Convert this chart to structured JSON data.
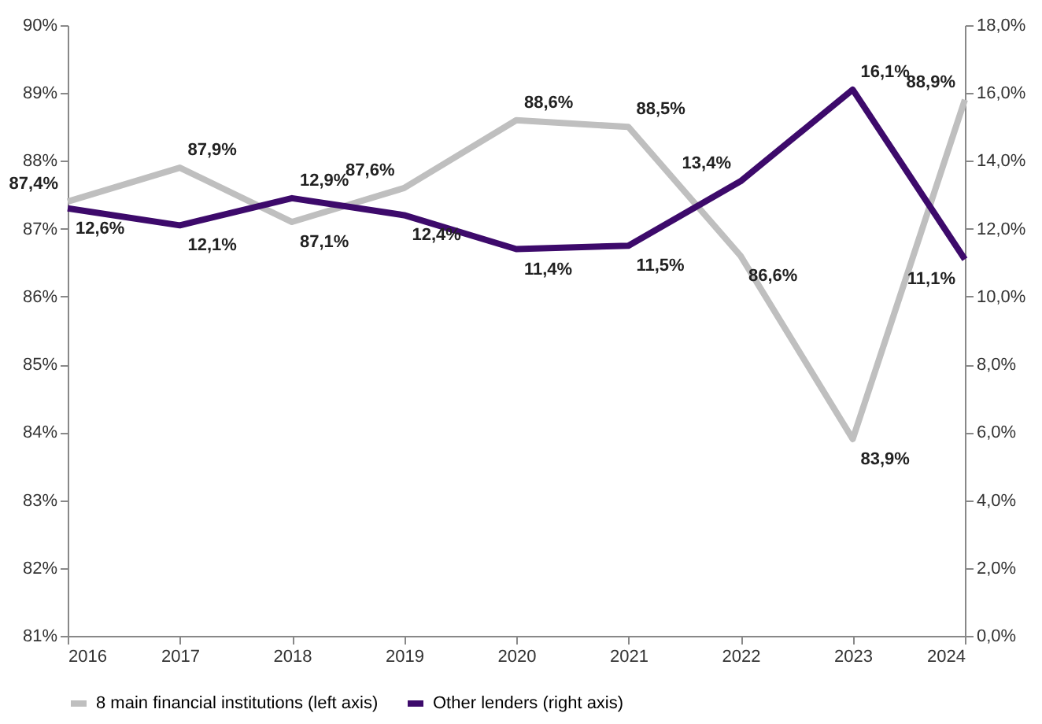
{
  "chart_data": {
    "type": "line",
    "x": [
      2016,
      2017,
      2018,
      2019,
      2020,
      2021,
      2022,
      2023,
      2024
    ],
    "xlim": [
      2016,
      2024
    ],
    "xticks": [
      2016,
      2017,
      2018,
      2019,
      2020,
      2021,
      2022,
      2023,
      2024
    ],
    "ylim": [
      81,
      90
    ],
    "yticks": [
      {
        "value": 81,
        "label": "81%"
      },
      {
        "value": 82,
        "label": "82%"
      },
      {
        "value": 83,
        "label": "83%"
      },
      {
        "value": 84,
        "label": "84%"
      },
      {
        "value": 85,
        "label": "85%"
      },
      {
        "value": 86,
        "label": "86%"
      },
      {
        "value": 87,
        "label": "87%"
      },
      {
        "value": 88,
        "label": "88%"
      },
      {
        "value": 89,
        "label": "89%"
      },
      {
        "value": 90,
        "label": "90%"
      }
    ],
    "y2lim": [
      0,
      18
    ],
    "y2ticks": [
      {
        "value": 0,
        "label": "0,0%"
      },
      {
        "value": 2,
        "label": "2,0%"
      },
      {
        "value": 4,
        "label": "4,0%"
      },
      {
        "value": 6,
        "label": "6,0%"
      },
      {
        "value": 8,
        "label": "8,0%"
      },
      {
        "value": 10,
        "label": "10,0%"
      },
      {
        "value": 12,
        "label": "12,0%"
      },
      {
        "value": 14,
        "label": "14,0%"
      },
      {
        "value": 16,
        "label": "16,0%"
      },
      {
        "value": 18,
        "label": "18,0%"
      }
    ],
    "series": [
      {
        "name": "8 main financial institutions (left axis)",
        "color": "#bfbfbf",
        "values": [
          87.4,
          87.9,
          87.1,
          87.6,
          88.6,
          88.5,
          86.6,
          83.9,
          88.9
        ],
        "value_labels": [
          "87,4%",
          "87,9%",
          "87,1%",
          "87,6%",
          "88,6%",
          "88,5%",
          "86,6%",
          "83,9%",
          "88,9%"
        ]
      },
      {
        "name": "Other lenders (right axis)",
        "color": "#3d0a6b",
        "axis": "y2",
        "values": [
          12.6,
          12.1,
          12.9,
          12.4,
          11.4,
          11.5,
          13.4,
          16.1,
          11.1
        ],
        "value_labels": [
          "12,6%",
          "12,1%",
          "12,9%",
          "12,4%",
          "11,4%",
          "11,5%",
          "13,4%",
          "16,1%",
          "11,1%"
        ]
      }
    ],
    "grid": false,
    "legend": "bottom",
    "marker": "none",
    "line_style": "solid"
  }
}
